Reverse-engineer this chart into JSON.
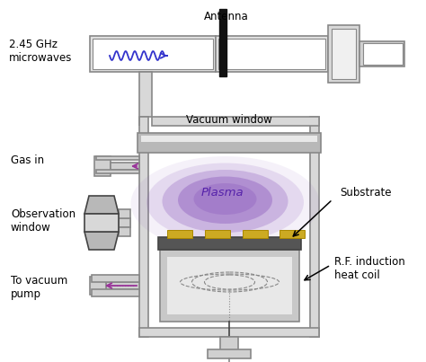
{
  "bg_color": "#ffffff",
  "line_color": "#888888",
  "dark_line": "#444444",
  "wall_color": "#cccccc",
  "wall_inner": "#f0f0f0",
  "arrow_purple": "#993399",
  "arrow_blue": "#3333cc",
  "plasma_color": "#8855bb",
  "substrate_gold": "#ccaa22",
  "antenna_black": "#111111",
  "coil_color": "#999999",
  "labels": {
    "antenna": "Antenna",
    "vacuum_window": "Vacuum window",
    "gas_in": "Gas in",
    "observation_window": "Observation\nwindow",
    "plasma": "Plasma",
    "substrate": "Substrate",
    "rf_coil": "R.F. induction\nheat coil",
    "to_vacuum": "To vacuum\npump",
    "microwaves": "2.45 GHz\nmicrowaves"
  },
  "figsize": [
    4.74,
    4.03
  ],
  "dpi": 100
}
